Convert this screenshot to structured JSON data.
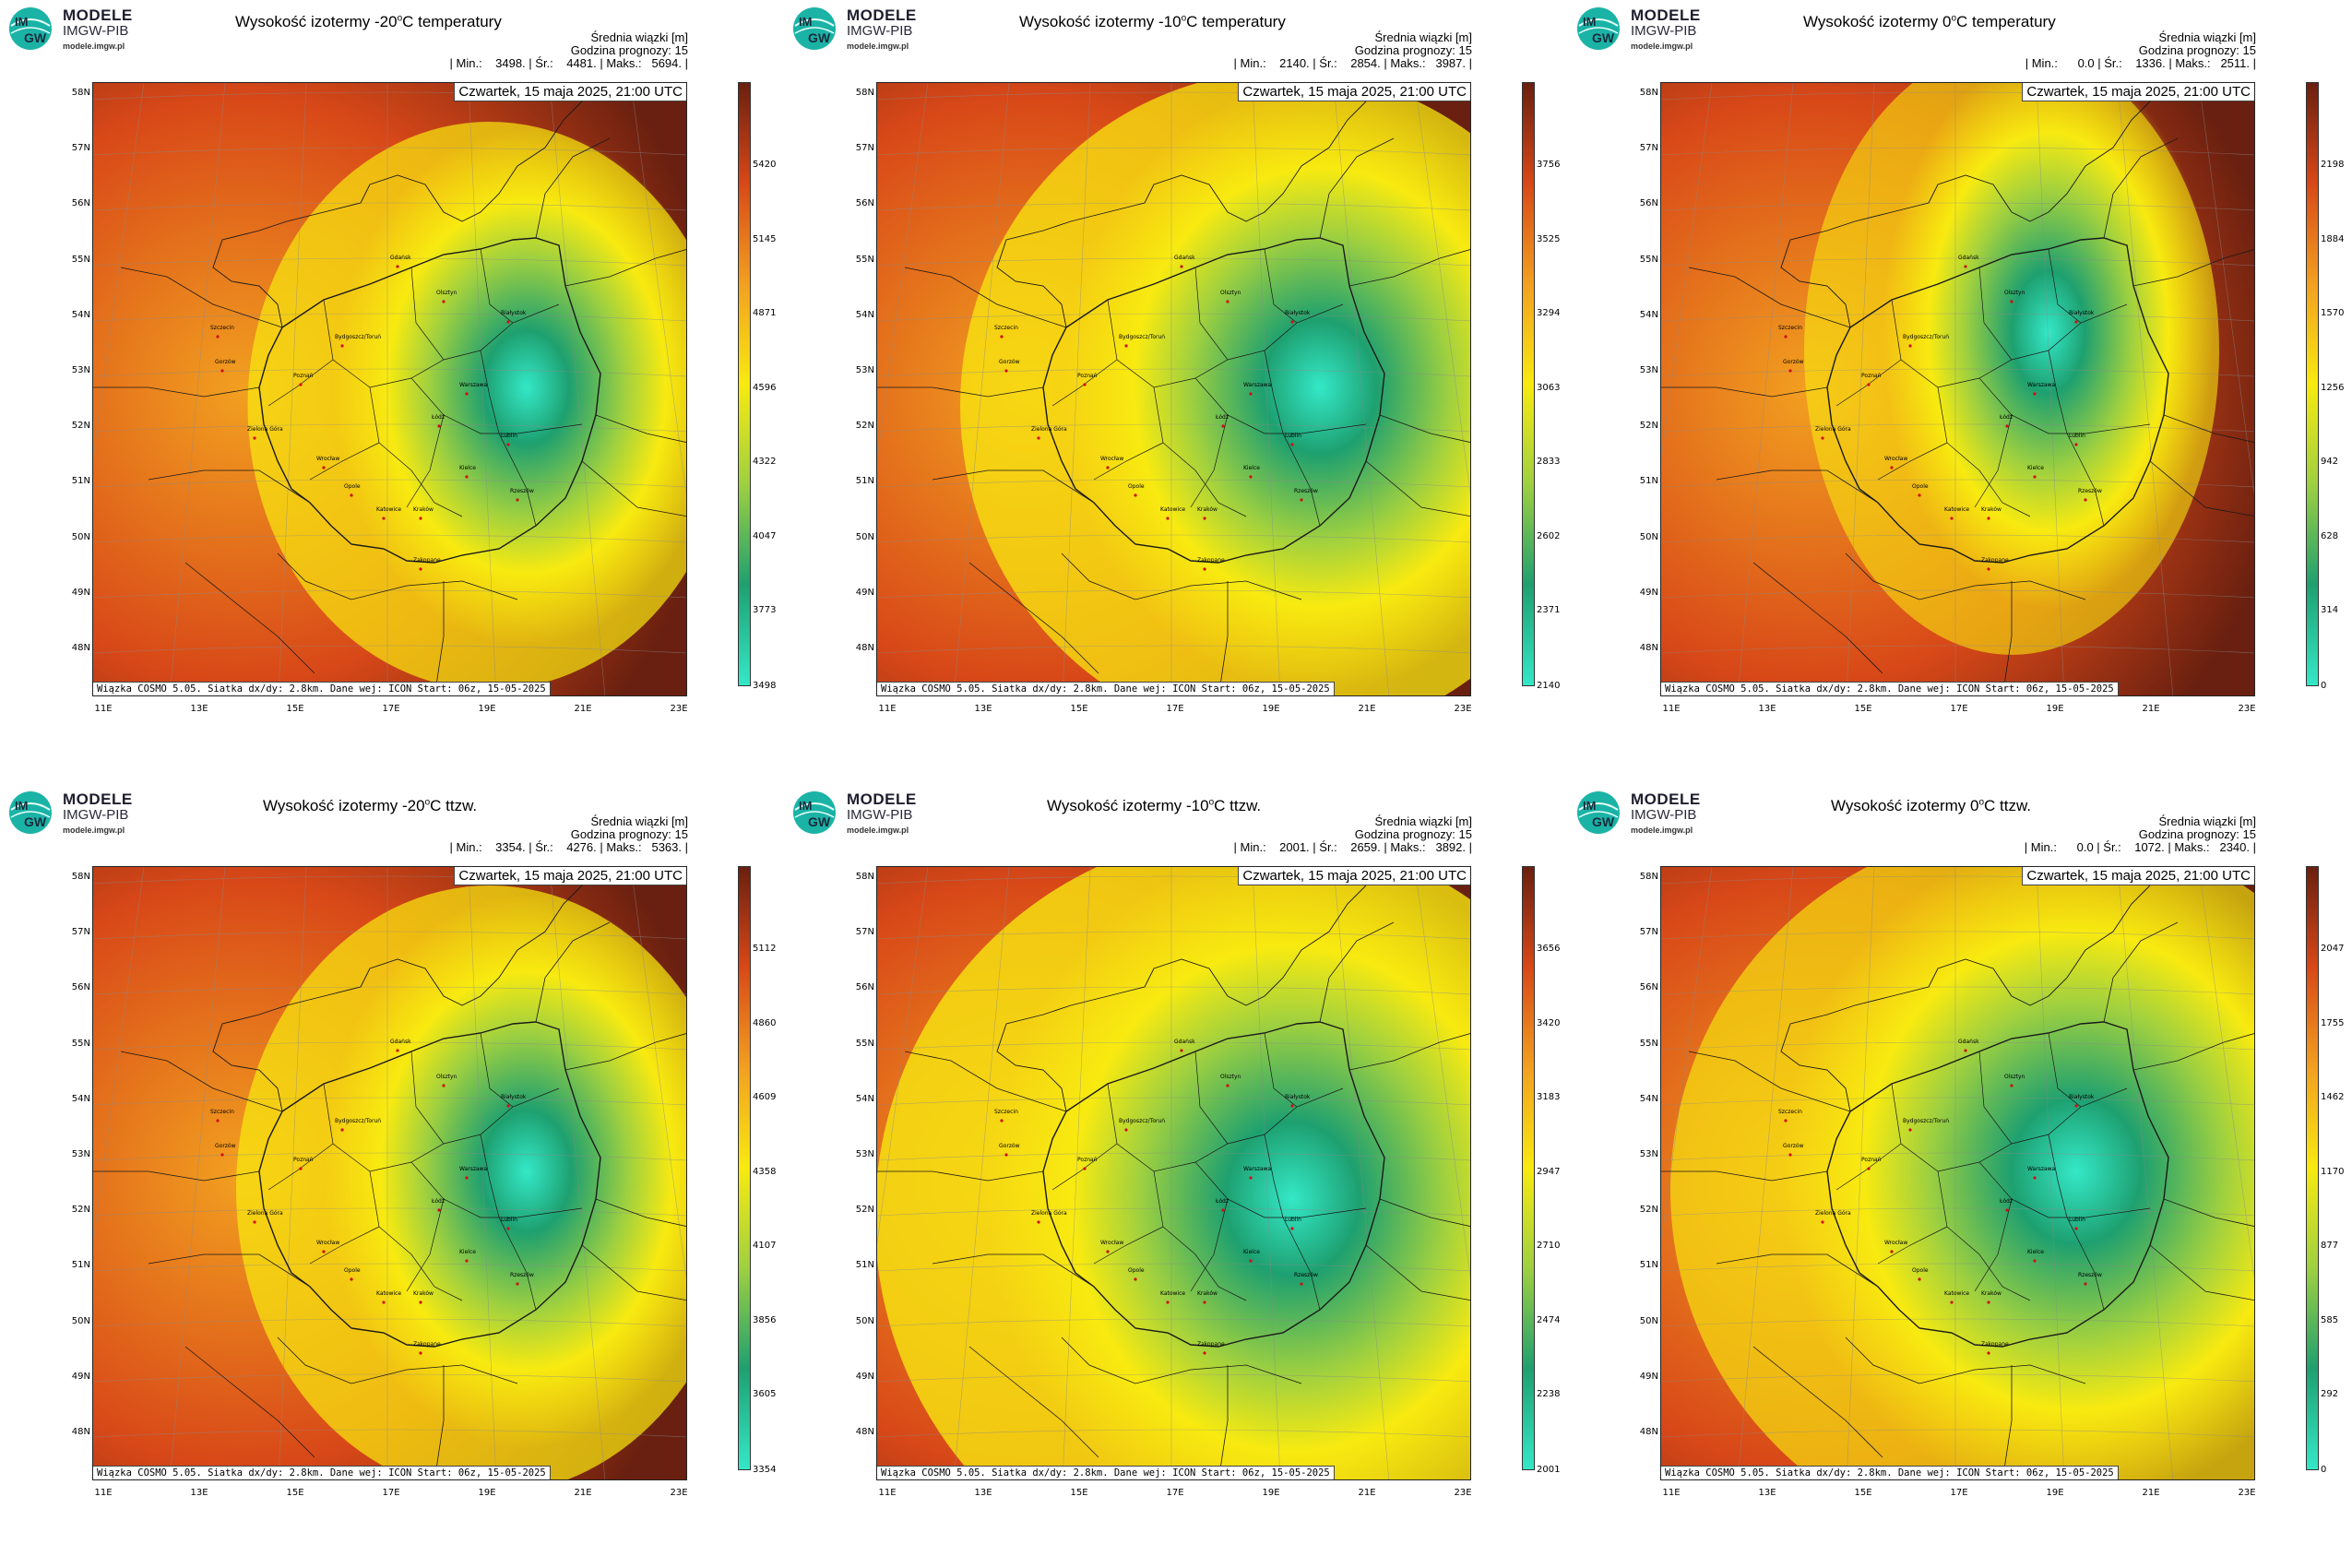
{
  "brand": {
    "line1": "MODELE",
    "line2": "IMGW-PIB",
    "line3": "modele.imgw.pl"
  },
  "common": {
    "header": "Średnia wiązki [m]",
    "forecast_hour": "Godzina prognozy: 15",
    "date": "Czwartek, 15 maja 2025, 21:00 UTC",
    "footer": "Wiązka COSMO 5.05. Siatka dx/dy: 2.8km. Dane wej: ICON Start: 06z, 15-05-2025",
    "lat_labels": [
      "58N",
      "57N",
      "56N",
      "55N",
      "54N",
      "53N",
      "52N",
      "51N",
      "50N",
      "49N",
      "48N"
    ],
    "lon_labels": [
      "11E",
      "13E",
      "15E",
      "17E",
      "19E",
      "21E",
      "23E"
    ],
    "cities": [
      "Gdańsk",
      "Olsztyn",
      "Szczecin",
      "Bydgoszcz/Toruń",
      "Białystok",
      "Gorzów",
      "Poznań",
      "Warszawa",
      "Łódź",
      "Zielona Góra",
      "Lublin",
      "Wrocław",
      "Kielce",
      "Opole",
      "Katowice",
      "Kraków",
      "Rzeszów",
      "Zakopane"
    ]
  },
  "panels": [
    {
      "title_pre": "Wysokość izotermy -20",
      "title_sup": "o",
      "title_post": "C temperatury",
      "stats": "| Min.:    3498. | Śr.:    4481. | Maks.:   5694. |",
      "scale": [
        "5420",
        "5145",
        "4871",
        "4596",
        "4322",
        "4047",
        "3773",
        "3498"
      ]
    },
    {
      "title_pre": "Wysokość izotermy -10",
      "title_sup": "o",
      "title_post": "C temperatury",
      "stats": "| Min.:    2140. | Śr.:    2854. | Maks.:   3987. |",
      "scale": [
        "3756",
        "3525",
        "3294",
        "3063",
        "2833",
        "2602",
        "2371",
        "2140"
      ]
    },
    {
      "title_pre": "Wysokość izotermy 0",
      "title_sup": "o",
      "title_post": "C temperatury",
      "stats": "| Min.:      0.0 | Śr.:    1336. | Maks.:   2511. |",
      "scale": [
        "2198",
        "1884",
        "1570",
        "1256",
        "942",
        "628",
        "314",
        "0"
      ]
    },
    {
      "title_pre": "Wysokość izotermy -20",
      "title_sup": "o",
      "title_post": "C ttzw.",
      "stats": "| Min.:    3354. | Śr.:    4276. | Maks.:   5363. |",
      "scale": [
        "5112",
        "4860",
        "4609",
        "4358",
        "4107",
        "3856",
        "3605",
        "3354"
      ]
    },
    {
      "title_pre": "Wysokość izotermy -10",
      "title_sup": "o",
      "title_post": "C ttzw.",
      "stats": "| Min.:    2001. | Śr.:    2659. | Maks.:   3892. |",
      "scale": [
        "3656",
        "3420",
        "3183",
        "2947",
        "2710",
        "2474",
        "2238",
        "2001"
      ]
    },
    {
      "title_pre": "Wysokość izotermy 0",
      "title_sup": "o",
      "title_post": "C ttzw.",
      "stats": "| Min.:      0.0 | Śr.:    1072. | Maks.:   2340. |",
      "scale": [
        "2047",
        "1755",
        "1462",
        "1170",
        "877",
        "585",
        "292",
        "0"
      ]
    }
  ],
  "colors": {
    "low": "#34e8c8",
    "green": "#1ea070",
    "lime": "#9ed040",
    "yellow": "#f8ea10",
    "orange": "#f2a020",
    "red": "#d84818",
    "dark": "#6a2010"
  }
}
